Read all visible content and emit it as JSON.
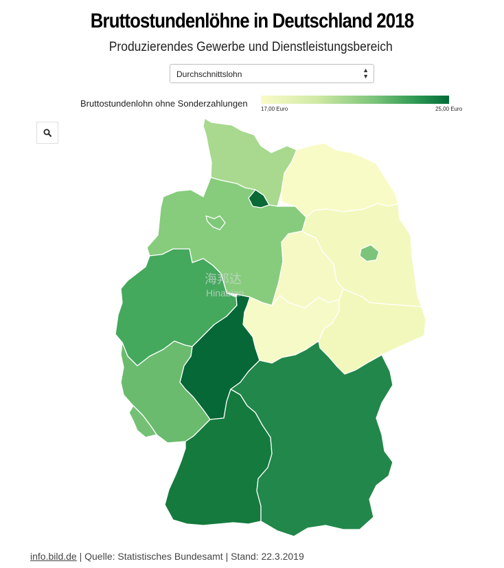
{
  "header": {
    "title": "Bruttostundenlöhne in Deutschland 2018",
    "subtitle": "Produzierendes Gewerbe und Dienstleistungsbereich"
  },
  "dropdown": {
    "selected": "Durchschnittslohn"
  },
  "legend": {
    "title": "Bruttostundenlohn ohne Sonderzahlungen",
    "min_label": "17,00 Euro",
    "max_label": "25,00 Euro",
    "color_low": "#fbfbc8",
    "color_high": "#026b37"
  },
  "zoom": {
    "icon": "search-icon"
  },
  "watermark": {
    "cn": "海邦达",
    "en": "Hinabian"
  },
  "footer": {
    "link": "info.bild.de",
    "text": " | Quelle: Statistisches Bundesamt | Stand: 22.3.2019"
  },
  "map": {
    "states": [
      {
        "id": "schleswig-holstein",
        "color": "#a8d98e"
      },
      {
        "id": "hamburg",
        "color": "#0a6a35"
      },
      {
        "id": "mecklenburg-vorpommern",
        "color": "#f9fbc6"
      },
      {
        "id": "niedersachsen",
        "color": "#86cc7c"
      },
      {
        "id": "bremen",
        "color": "#7ec87a"
      },
      {
        "id": "brandenburg",
        "color": "#f3f8bf"
      },
      {
        "id": "berlin",
        "color": "#7cc47a"
      },
      {
        "id": "sachsen-anhalt",
        "color": "#f6f9c4"
      },
      {
        "id": "nordrhein-westfalen",
        "color": "#44a85d"
      },
      {
        "id": "sachsen",
        "color": "#f2f8bc"
      },
      {
        "id": "thueringen",
        "color": "#f6fac6"
      },
      {
        "id": "hessen",
        "color": "#056836"
      },
      {
        "id": "rheinland-pfalz",
        "color": "#6abb6e"
      },
      {
        "id": "saarland",
        "color": "#74c176"
      },
      {
        "id": "baden-wuerttemberg",
        "color": "#157a3e"
      },
      {
        "id": "bayern",
        "color": "#22874a"
      }
    ]
  }
}
